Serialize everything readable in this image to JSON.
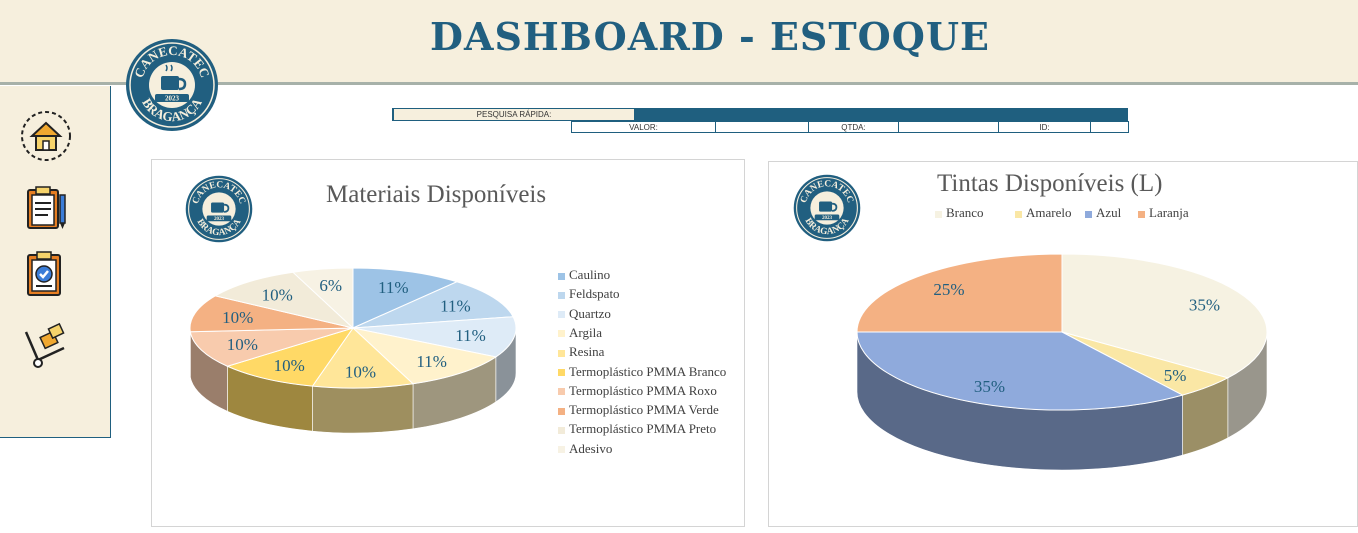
{
  "header": {
    "title": "DASHBOARD - ESTOQUE"
  },
  "logo": {
    "top_text": "CANECATEC",
    "bottom_text": "BRAGANÇA",
    "year": "2023"
  },
  "nav": [
    {
      "name": "home",
      "icon": "home-icon"
    },
    {
      "name": "inventory-checklist",
      "icon": "clipboard-list-icon"
    },
    {
      "name": "approved-checklist",
      "icon": "clipboard-check-icon"
    },
    {
      "name": "delivery",
      "icon": "hand-truck-icon"
    }
  ],
  "search": {
    "label": "PESQUISA RÁPIDA:",
    "valor_label": "VALOR:",
    "qtda_label": "QTDA:",
    "id_label": "ID:"
  },
  "chart_data": [
    {
      "type": "pie",
      "title": "Materiais Disponíveis",
      "categories": [
        "Caulino",
        "Feldspato",
        "Quartzo",
        "Argila",
        "Resina",
        "Termoplástico PMMA Branco",
        "Termoplástico PMMA Roxo",
        "Termoplástico PMMA Verde",
        "Termoplástico PMMA Preto",
        "Adesivo"
      ],
      "values": [
        11,
        11,
        11,
        11,
        10,
        10,
        10,
        10,
        10,
        6
      ],
      "labels": [
        "11%",
        "11%",
        "11%",
        "11%",
        "10%",
        "10%",
        "10%",
        "10%",
        "10%",
        "6%"
      ],
      "colors": [
        "#9dc3e6",
        "#bdd7ee",
        "#deebf7",
        "#fff2cc",
        "#ffe699",
        "#ffd966",
        "#f8cbad",
        "#f4b183",
        "#f2ebd9",
        "#f7f2e4"
      ],
      "legend": "right"
    },
    {
      "type": "pie",
      "title": "Tintas Disponíveis (L)",
      "categories": [
        "Branco",
        "Amarelo",
        "Azul",
        "Laranja"
      ],
      "values": [
        35,
        5,
        35,
        25
      ],
      "labels": [
        "35%",
        "5%",
        "35%",
        "25%"
      ],
      "colors": [
        "#f6f2e2",
        "#fae7a5",
        "#8faadc",
        "#f4b183"
      ],
      "legend": "top"
    }
  ]
}
